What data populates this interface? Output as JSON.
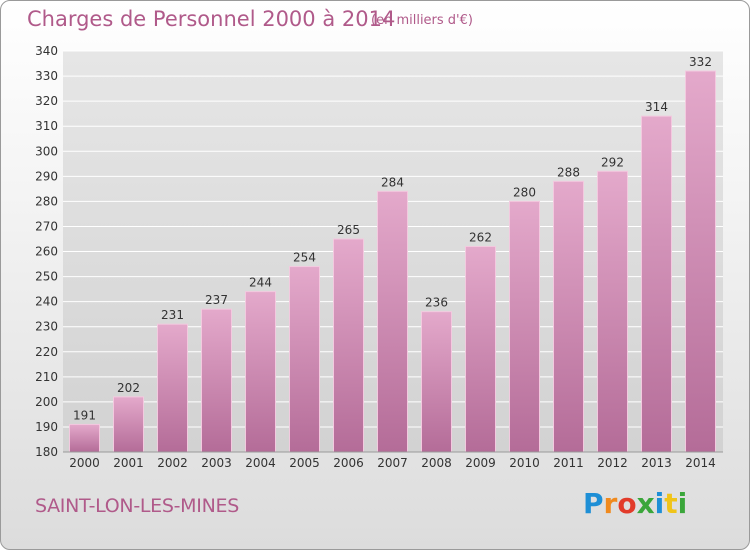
{
  "header": {
    "title": "Charges de Personnel 2000 à 2014",
    "subtitle": "(en milliers d'€)"
  },
  "footer": {
    "town": "SAINT-LON-LES-MINES",
    "logo_text": "Proxiti",
    "logo_colors": [
      "#1e8fd6",
      "#f08a1e",
      "#e23b2a",
      "#3aa63a",
      "#1e8fd6",
      "#f0c419",
      "#3aa63a"
    ]
  },
  "colors": {
    "bar_top": "#e4a9cb",
    "bar_bottom": "#b46c98",
    "label_text": "#b05a8a",
    "axis_text": "#333333",
    "grid": "#ffffff"
  },
  "chart_data": {
    "type": "bar",
    "title": "Charges de Personnel 2000 à 2014",
    "subtitle": "(en milliers d'€)",
    "xlabel": "",
    "ylabel": "",
    "categories": [
      "2000",
      "2001",
      "2002",
      "2003",
      "2004",
      "2005",
      "2006",
      "2007",
      "2008",
      "2009",
      "2010",
      "2011",
      "2012",
      "2013",
      "2014"
    ],
    "values": [
      191,
      202,
      231,
      237,
      244,
      254,
      265,
      284,
      236,
      262,
      280,
      288,
      292,
      314,
      332
    ],
    "ylim": [
      180,
      340
    ],
    "yticks": [
      180,
      190,
      200,
      210,
      220,
      230,
      240,
      250,
      260,
      270,
      280,
      290,
      300,
      310,
      320,
      330,
      340
    ],
    "grid": true,
    "data_labels": true
  }
}
